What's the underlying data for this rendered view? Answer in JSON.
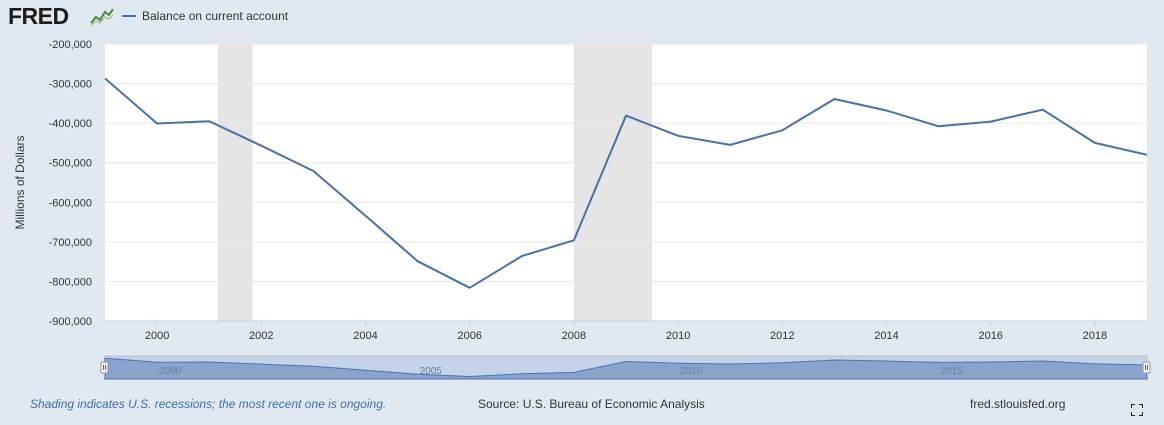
{
  "header": {
    "logo_text": "FRED"
  },
  "chart_data": {
    "type": "line",
    "title": "",
    "xlabel": "",
    "ylabel": "Millions of Dollars",
    "series": [
      {
        "name": "Balance on current account",
        "color": "#4572a7",
        "points": [
          [
            1999,
            -287000
          ],
          [
            2000,
            -401000
          ],
          [
            2001,
            -395000
          ],
          [
            2002,
            -457000
          ],
          [
            2003,
            -521000
          ],
          [
            2004,
            -634000
          ],
          [
            2005,
            -749000
          ],
          [
            2006,
            -816000
          ],
          [
            2007,
            -736000
          ],
          [
            2008,
            -696000
          ],
          [
            2009,
            -381000
          ],
          [
            2010,
            -432000
          ],
          [
            2011,
            -455000
          ],
          [
            2012,
            -418000
          ],
          [
            2013,
            -339000
          ],
          [
            2014,
            -368000
          ],
          [
            2015,
            -408000
          ],
          [
            2016,
            -396000
          ],
          [
            2017,
            -366000
          ],
          [
            2018,
            -450000
          ],
          [
            2019,
            -480000
          ]
        ]
      }
    ],
    "xlim": [
      1999,
      2019
    ],
    "ylim": [
      -900000,
      -200000
    ],
    "y_ticks": [
      -200000,
      -300000,
      -400000,
      -500000,
      -600000,
      -700000,
      -800000,
      -900000
    ],
    "y_tick_labels": [
      "-200,000",
      "-300,000",
      "-400,000",
      "-500,000",
      "-600,000",
      "-700,000",
      "-800,000",
      "-900,000"
    ],
    "x_ticks": [
      2000,
      2002,
      2004,
      2006,
      2008,
      2010,
      2012,
      2014,
      2016,
      2018
    ],
    "x_tick_labels": [
      "2000",
      "2002",
      "2004",
      "2006",
      "2008",
      "2010",
      "2012",
      "2014",
      "2016",
      "2018"
    ],
    "recessions": [
      [
        2001.17,
        2001.83
      ],
      [
        2008.0,
        2009.5
      ]
    ],
    "recession_color": "#e5e5e5",
    "grid": true,
    "legend_position": "top-left",
    "navigator": {
      "xlim": [
        1999,
        2019
      ],
      "labels": [
        "2000",
        "2005",
        "2010",
        "2015"
      ],
      "label_years": [
        2000,
        2005,
        2010,
        2015
      ]
    }
  },
  "footer": {
    "note": "Shading indicates U.S. recessions; the most recent one is ongoing.",
    "source": "Source: U.S. Bureau of Economic Analysis",
    "site": "fred.stlouisfed.org"
  }
}
